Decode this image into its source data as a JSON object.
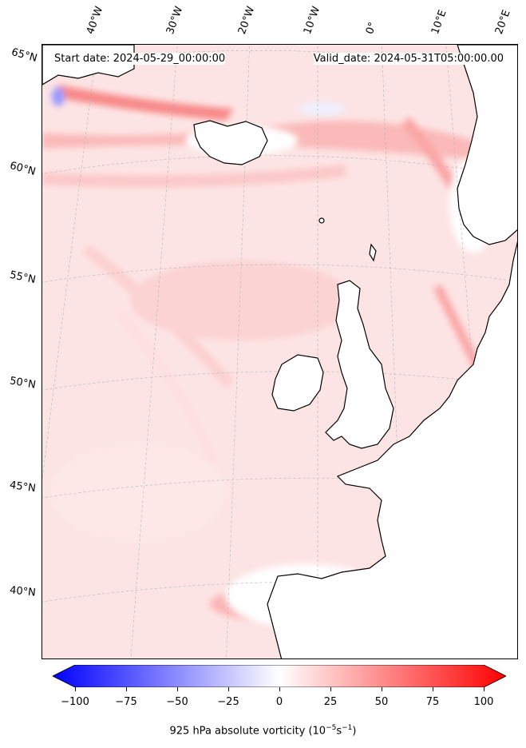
{
  "header": {
    "start_date": "Start date: 2024-05-29_00:00:00",
    "valid_date": "Valid_date: 2024-05-31T05:00:00.00"
  },
  "map": {
    "longitude_labels": [
      "40°W",
      "30°W",
      "20°W",
      "10°W",
      "0°",
      "10°E",
      "20°E"
    ],
    "latitude_labels": [
      "65°N",
      "60°N",
      "55°N",
      "50°N",
      "45°N",
      "40°N"
    ],
    "gridlines": true,
    "coastlines": true
  },
  "colorbar": {
    "ticks": [
      "−100",
      "−75",
      "−50",
      "−25",
      "0",
      "25",
      "50",
      "75",
      "100"
    ],
    "label_prefix": "925 hPa absolute vorticity (10",
    "label_exp1": "−5",
    "label_mid": "s",
    "label_exp2": "−1",
    "label_suffix": ")",
    "colormap": "bwr",
    "range": [
      -100,
      100
    ],
    "extend": "both",
    "min_color": "#0000ff",
    "mid_color": "#ffffff",
    "max_color": "#ff0000"
  }
}
